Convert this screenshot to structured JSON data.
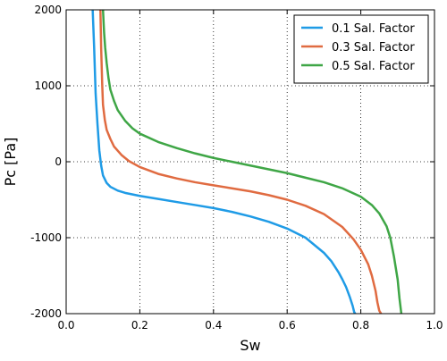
{
  "chart_data": {
    "type": "line",
    "xlabel": "Sw",
    "ylabel": "Pc [Pa]",
    "xlim": [
      0.0,
      1.0
    ],
    "ylim": [
      -2000,
      2000
    ],
    "xticks": [
      0.0,
      0.2,
      0.4,
      0.6,
      0.8,
      1.0
    ],
    "xtick_labels": [
      "0.0",
      "0.2",
      "0.4",
      "0.6",
      "0.8",
      "1.0"
    ],
    "yticks": [
      -2000,
      -1000,
      0,
      1000,
      2000
    ],
    "ytick_labels": [
      "-2000",
      "-1000",
      "0",
      "1000",
      "2000"
    ],
    "grid": true,
    "legend_position": "top-right",
    "series": [
      {
        "name": "0.1 Sal. Factor",
        "color": "#1f9be6",
        "x": [
          0.072,
          0.076,
          0.08,
          0.085,
          0.09,
          0.095,
          0.1,
          0.11,
          0.12,
          0.14,
          0.16,
          0.2,
          0.25,
          0.3,
          0.35,
          0.4,
          0.45,
          0.5,
          0.55,
          0.6,
          0.65,
          0.7,
          0.72,
          0.74,
          0.75,
          0.76,
          0.77,
          0.778,
          0.782,
          0.785
        ],
        "y": [
          2000,
          1500,
          900,
          500,
          150,
          -50,
          -180,
          -280,
          -330,
          -380,
          -410,
          -450,
          -490,
          -530,
          -570,
          -610,
          -660,
          -720,
          -790,
          -880,
          -1000,
          -1200,
          -1310,
          -1460,
          -1550,
          -1650,
          -1780,
          -1900,
          -1980,
          -2000
        ]
      },
      {
        "name": "0.3 Sal. Factor",
        "color": "#e06b41",
        "x": [
          0.093,
          0.095,
          0.098,
          0.1,
          0.105,
          0.11,
          0.12,
          0.13,
          0.15,
          0.17,
          0.2,
          0.25,
          0.3,
          0.35,
          0.4,
          0.45,
          0.5,
          0.55,
          0.6,
          0.65,
          0.7,
          0.75,
          0.78,
          0.8,
          0.82,
          0.83,
          0.84,
          0.845,
          0.85,
          0.855
        ],
        "y": [
          2000,
          1500,
          1000,
          750,
          550,
          420,
          300,
          200,
          90,
          10,
          -70,
          -160,
          -220,
          -270,
          -310,
          -350,
          -390,
          -440,
          -500,
          -580,
          -690,
          -860,
          -1020,
          -1160,
          -1350,
          -1500,
          -1700,
          -1850,
          -1960,
          -2000
        ]
      },
      {
        "name": "0.5 Sal. Factor",
        "color": "#3fa646",
        "x": [
          0.1,
          0.103,
          0.106,
          0.11,
          0.115,
          0.12,
          0.13,
          0.14,
          0.16,
          0.18,
          0.2,
          0.25,
          0.3,
          0.35,
          0.4,
          0.45,
          0.5,
          0.55,
          0.6,
          0.65,
          0.7,
          0.75,
          0.8,
          0.83,
          0.85,
          0.87,
          0.88,
          0.89,
          0.9,
          0.905,
          0.91
        ],
        "y": [
          2000,
          1700,
          1500,
          1300,
          1100,
          950,
          800,
          680,
          540,
          440,
          370,
          260,
          180,
          110,
          50,
          0,
          -50,
          -100,
          -150,
          -210,
          -270,
          -350,
          -460,
          -570,
          -680,
          -850,
          -1000,
          -1250,
          -1550,
          -1800,
          -2000
        ]
      }
    ]
  }
}
